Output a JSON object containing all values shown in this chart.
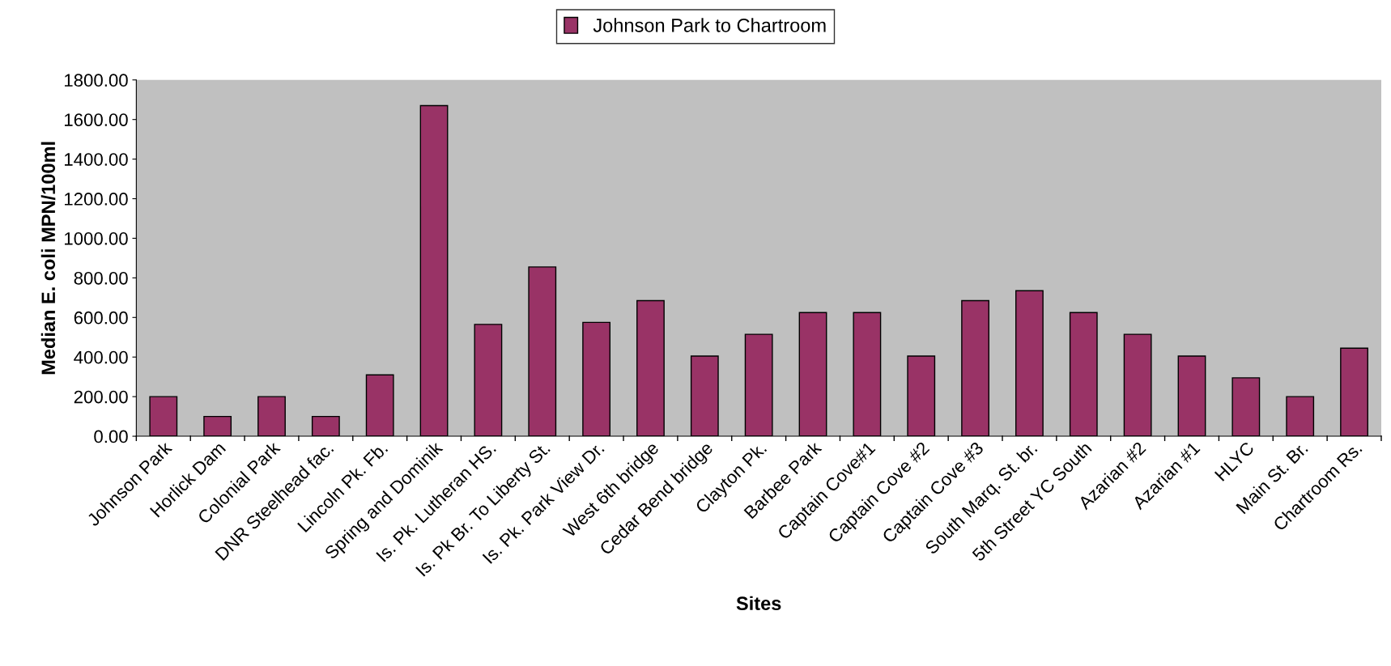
{
  "chart_data": {
    "type": "bar",
    "xlabel": "Sites",
    "ylabel": "Median E. coli MPN/100ml",
    "categories": [
      "Johnson Park",
      "Horlick Dam",
      "Colonial Park",
      "DNR Steelhead fac.",
      "Lincoln Pk. Fb.",
      "Spring and Dominik",
      "Is. Pk. Lutheran HS.",
      "Is. Pk Br. To Liberty St.",
      "Is. Pk. Park View Dr.",
      "West 6th bridge",
      "Cedar Bend bridge",
      "Clayton Pk.",
      "Barbee Park",
      "Captain Cove#1",
      "Captain Cove #2",
      "Captain Cove #3",
      "South Marq. St. br.",
      "5th Street YC South",
      "Azarian #2",
      "Azarian #1",
      "HLYC",
      "Main St. Br.",
      "Chartroom Rs."
    ],
    "series": [
      {
        "name": "Johnson Park to Chartroom",
        "color": "#993366",
        "values": [
          200,
          100,
          200,
          100,
          310,
          1670,
          565,
          855,
          575,
          685,
          405,
          515,
          625,
          625,
          405,
          685,
          735,
          625,
          515,
          405,
          295,
          200,
          445
        ]
      }
    ],
    "ylim": [
      0,
      1800
    ],
    "yticks": [
      {
        "value": 0,
        "label": "0.00"
      },
      {
        "value": 200,
        "label": "200.00"
      },
      {
        "value": 400,
        "label": "400.00"
      },
      {
        "value": 600,
        "label": "600.00"
      },
      {
        "value": 800,
        "label": "800.00"
      },
      {
        "value": 1000,
        "label": "1000.00"
      },
      {
        "value": 1200,
        "label": "1200.00"
      },
      {
        "value": 1400,
        "label": "1400.00"
      },
      {
        "value": 1600,
        "label": "1600.00"
      },
      {
        "value": 1800,
        "label": "1800.00"
      }
    ],
    "legend": "top"
  }
}
